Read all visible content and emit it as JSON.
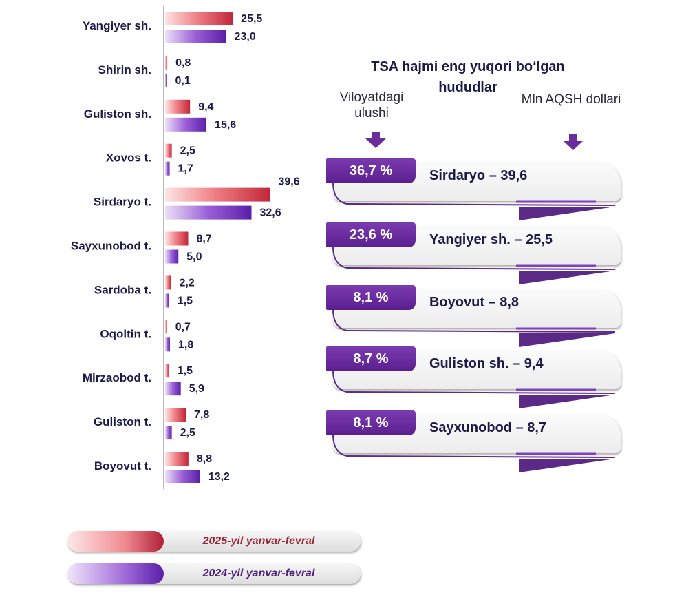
{
  "chart_data": {
    "type": "bar",
    "orientation": "horizontal",
    "categories": [
      "Yangiyer sh.",
      "Shirin sh.",
      "Guliston sh.",
      "Xovos t.",
      "Sirdaryo t.",
      "Sayxunobod t.",
      "Sardoba t.",
      "Oqoltin t.",
      "Mirzaobod t.",
      "Guliston t.",
      "Boyovut t."
    ],
    "series": [
      {
        "name": "2025-yil yanvar-fevral",
        "color": "#c0392b",
        "values": [
          25.5,
          0.8,
          9.4,
          2.5,
          39.6,
          8.7,
          2.2,
          0.7,
          1.5,
          7.8,
          8.8
        ],
        "labels": [
          "25,5",
          "0,8",
          "9,4",
          "2,5",
          "39,6",
          "8,7",
          "2,2",
          "0,7",
          "1,5",
          "7,8",
          "8,8"
        ]
      },
      {
        "name": "2024-yil yanvar-fevral",
        "color": "#6a2bb0",
        "values": [
          23.0,
          0.1,
          15.6,
          1.7,
          32.6,
          5.0,
          1.5,
          1.8,
          5.9,
          2.5,
          13.2
        ],
        "labels": [
          "23,0",
          "0,1",
          "15,6",
          "1,7",
          "32,6",
          "5,0",
          "1,5",
          "1,8",
          "5,9",
          "2,5",
          "13,2"
        ]
      }
    ],
    "legend": "bottom-left",
    "grid": false
  },
  "panel": {
    "title": "TSA hajmi eng yuqori bo‘lgan hududlar",
    "left_header": "Viloyatdagi ulushi",
    "right_header": "Mln AQSH dollari",
    "items": [
      {
        "share": "36,7 %",
        "label": "Sirdaryo – 39,6"
      },
      {
        "share": "23,6 %",
        "label": "Yangiyer sh. – 25,5"
      },
      {
        "share": "8,1 %",
        "label": "Boyovut – 8,8"
      },
      {
        "share": "8,7 %",
        "label": "Guliston sh. – 9,4"
      },
      {
        "share": "8,1 %",
        "label": "Sayxunobod – 8,7"
      }
    ]
  },
  "legend": {
    "items": [
      {
        "label": "2025-yil yanvar-fevral",
        "color": "#9b2335"
      },
      {
        "label": "2024-yil yanvar-fevral",
        "color": "#5b2a86"
      }
    ]
  }
}
